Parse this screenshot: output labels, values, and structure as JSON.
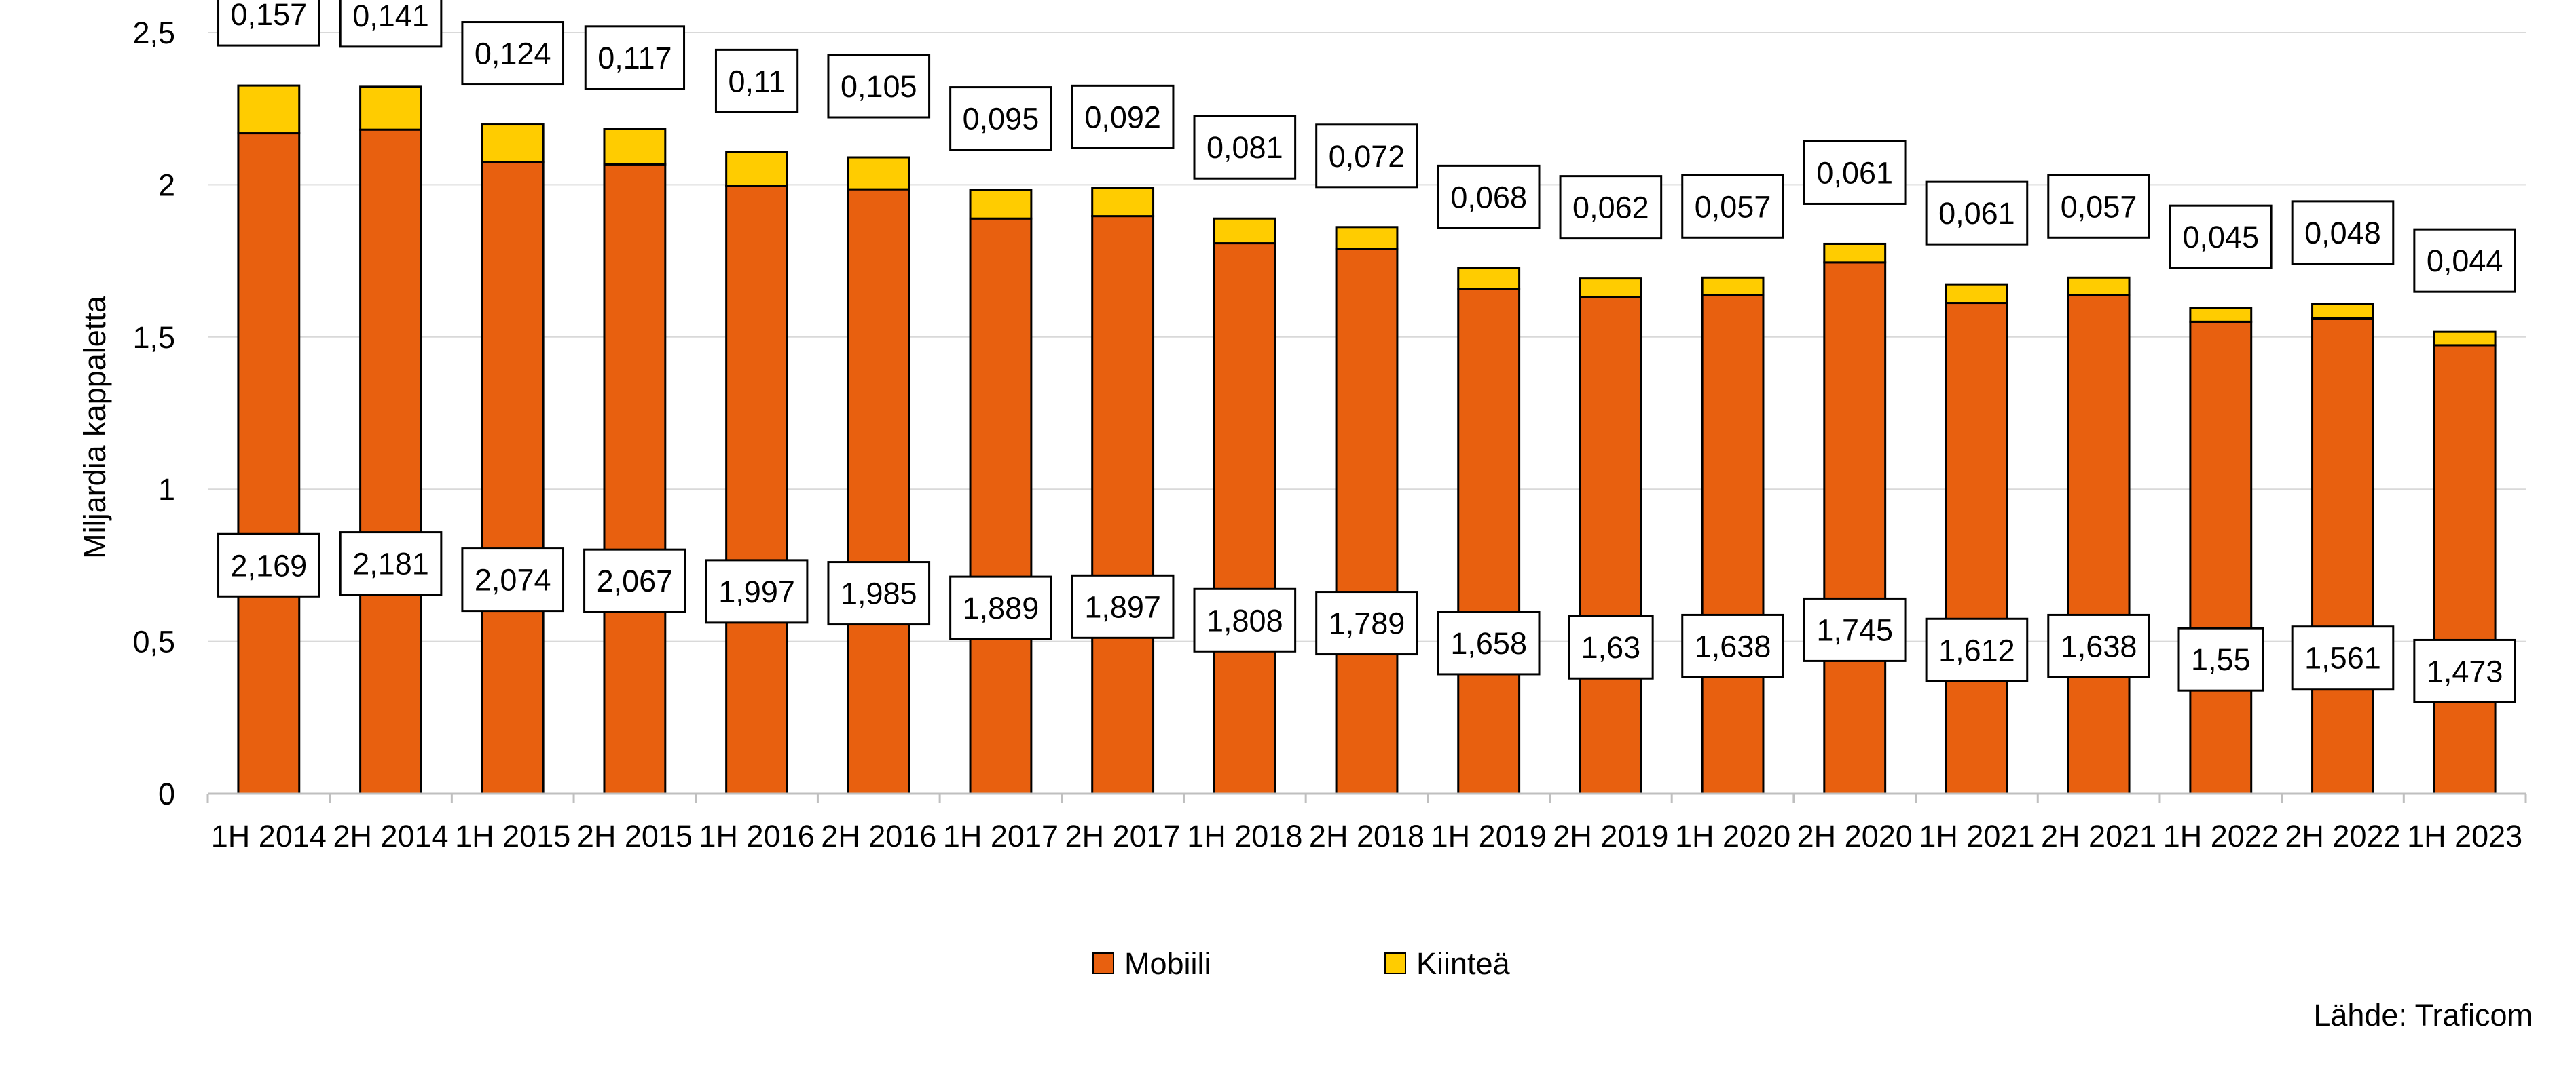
{
  "chart_data": {
    "type": "bar",
    "stacked": true,
    "ylabel": "Miljardia kappaletta",
    "ylim": [
      0,
      2.5
    ],
    "yticks": [
      "0",
      "0,5",
      "1",
      "1,5",
      "2",
      "2,5"
    ],
    "ytick_values": [
      0,
      0.5,
      1,
      1.5,
      2,
      2.5
    ],
    "grid": true,
    "legend_position": "bottom",
    "categories": [
      "1H 2014",
      "2H 2014",
      "1H 2015",
      "2H 2015",
      "1H 2016",
      "2H 2016",
      "1H 2017",
      "2H 2017",
      "1H 2018",
      "2H 2018",
      "1H 2019",
      "2H 2019",
      "1H 2020",
      "2H 2020",
      "1H 2021",
      "2H 2021",
      "1H 2022",
      "2H 2022",
      "1H 2023"
    ],
    "series": [
      {
        "name": "Mobiili",
        "color": "#E8600F",
        "values": [
          2.169,
          2.181,
          2.074,
          2.067,
          1.997,
          1.985,
          1.889,
          1.897,
          1.808,
          1.789,
          1.658,
          1.63,
          1.638,
          1.745,
          1.612,
          1.638,
          1.55,
          1.561,
          1.473
        ],
        "labels": [
          "2,169",
          "2,181",
          "2,074",
          "2,067",
          "1,997",
          "1,985",
          "1,889",
          "1,897",
          "1,808",
          "1,789",
          "1,658",
          "1,63",
          "1,638",
          "1,745",
          "1,612",
          "1,638",
          "1,55",
          "1,561",
          "1,473"
        ]
      },
      {
        "name": "Kiinteä",
        "color": "#FFCC00",
        "values": [
          0.157,
          0.141,
          0.124,
          0.117,
          0.11,
          0.105,
          0.095,
          0.092,
          0.081,
          0.072,
          0.068,
          0.062,
          0.057,
          0.061,
          0.061,
          0.057,
          0.045,
          0.048,
          0.044
        ],
        "labels": [
          "0,157",
          "0,141",
          "0,124",
          "0,117",
          "0,11",
          "0,105",
          "0,095",
          "0,092",
          "0,081",
          "0,072",
          "0,068",
          "0,062",
          "0,057",
          "0,061",
          "0,061",
          "0,057",
          "0,045",
          "0,048",
          "0,044"
        ]
      }
    ],
    "source": "Lähde: Traficom"
  }
}
